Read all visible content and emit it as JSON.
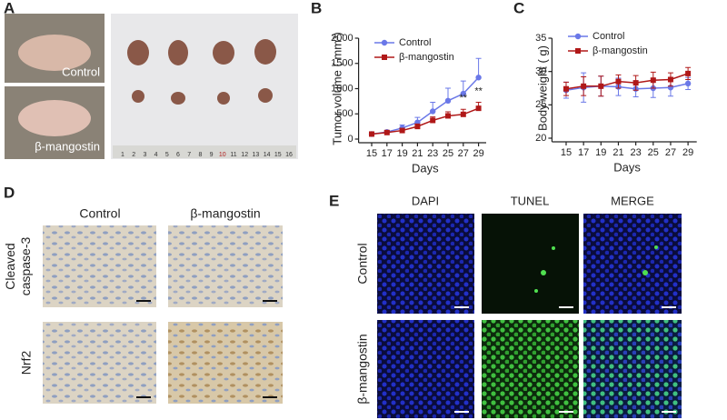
{
  "panel_labels": [
    "A",
    "B",
    "C",
    "D",
    "E"
  ],
  "photo_labels": [
    "Control",
    "β-mangostin"
  ],
  "ruler": [
    "1",
    "2",
    "3",
    "4",
    "5",
    "6",
    "7",
    "8",
    "9",
    "10",
    "11",
    "12",
    "13",
    "14",
    "15",
    "16"
  ],
  "chart_data": [
    {
      "type": "line",
      "x_label": "Days",
      "y_label": "Tumor volume ( mm³)",
      "x": [
        15,
        17,
        19,
        21,
        23,
        25,
        27,
        29
      ],
      "xlim": [
        14,
        30
      ],
      "xticks": [
        15,
        17,
        19,
        21,
        23,
        25,
        27,
        29
      ],
      "ylim": [
        0,
        2000
      ],
      "yticks": [
        0,
        500,
        1000,
        1500,
        2000
      ],
      "error_bars": "upper",
      "series": [
        {
          "name": "Control",
          "color": "#6a78e8",
          "marker": "circle",
          "values": [
            100,
            140,
            220,
            330,
            550,
            760,
            900,
            1220
          ],
          "errors": [
            20,
            30,
            60,
            100,
            180,
            250,
            250,
            380
          ]
        },
        {
          "name": "β-mangostin",
          "color": "#b01818",
          "marker": "square",
          "values": [
            100,
            130,
            170,
            250,
            370,
            460,
            490,
            610
          ],
          "errors": [
            30,
            30,
            40,
            50,
            70,
            80,
            100,
            120
          ]
        }
      ],
      "annotations": [
        {
          "text": "**",
          "x": 27
        },
        {
          "text": "**",
          "x": 29
        }
      ]
    },
    {
      "type": "line",
      "x_label": "Days",
      "y_label": "Body weight ( g)",
      "x": [
        15,
        17,
        19,
        21,
        23,
        25,
        27,
        29
      ],
      "xlim": [
        14,
        30
      ],
      "xticks": [
        15,
        17,
        19,
        21,
        23,
        25,
        27,
        29
      ],
      "ylim": [
        20,
        35
      ],
      "yticks": [
        20,
        25,
        30,
        35
      ],
      "error_bars": "both",
      "series": [
        {
          "name": "Control",
          "color": "#6a78e8",
          "marker": "circle",
          "values": [
            27.2,
            27.6,
            27.8,
            27.7,
            27.4,
            27.5,
            27.6,
            28.2
          ],
          "errors": [
            1.2,
            2.2,
            1.5,
            1.3,
            1.2,
            1.4,
            1.3,
            0.9
          ]
        },
        {
          "name": "β-mangostin",
          "color": "#b01818",
          "marker": "square",
          "values": [
            27.4,
            27.8,
            27.8,
            28.5,
            28.3,
            28.7,
            28.8,
            29.7
          ],
          "errors": [
            1.0,
            1.4,
            1.5,
            1.0,
            1.1,
            1.2,
            1.0,
            0.9
          ]
        }
      ],
      "annotations": []
    }
  ],
  "ihc": {
    "columns": [
      "Control",
      "β-mangostin"
    ],
    "rows": [
      [
        "Cleaved",
        "caspase-3"
      ],
      [
        "Nrf2"
      ]
    ]
  },
  "tunel": {
    "columns": [
      "DAPI",
      "TUNEL",
      "MERGE"
    ],
    "rows": [
      "Control",
      "β-mangostin"
    ]
  }
}
